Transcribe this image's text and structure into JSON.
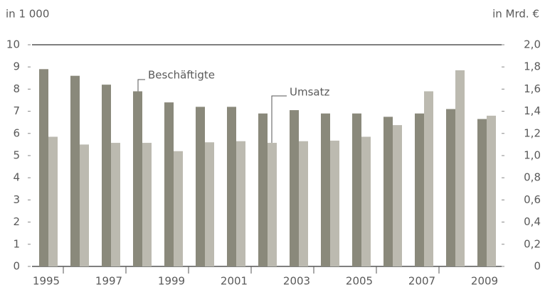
{
  "chart_data": {
    "type": "bar",
    "y_label": "in 1 000",
    "y2_label": "in Mrd. €",
    "categories": [
      "1995",
      null,
      "1997",
      null,
      "1999",
      null,
      "2001",
      null,
      "2003",
      null,
      "2005",
      null,
      "2007",
      null,
      "2009"
    ],
    "series": [
      {
        "name": "Beschäftigte",
        "color": "#8a897b",
        "values": [
          8.9,
          8.6,
          8.2,
          7.9,
          7.4,
          7.2,
          7.2,
          6.9,
          7.05,
          6.9,
          6.9,
          6.75,
          6.9,
          7.1,
          6.65
        ]
      },
      {
        "name": "Umsatz",
        "color": "#bcbab0",
        "axis": "y2",
        "values": [
          1.17,
          1.1,
          1.115,
          1.115,
          1.04,
          1.12,
          1.13,
          1.115,
          1.13,
          1.135,
          1.17,
          1.275,
          1.58,
          1.77,
          1.36
        ]
      }
    ],
    "ylim": [
      0,
      10
    ],
    "yticks": [
      0,
      1,
      2,
      3,
      4,
      5,
      6,
      7,
      8,
      9,
      10
    ],
    "y2lim": [
      0,
      2.0
    ],
    "y2ticks": [
      0,
      {
        "value": 0.2,
        "label": "0,2"
      },
      {
        "value": 0.4,
        "label": "0,4"
      },
      {
        "value": 0.6,
        "label": "0,6"
      },
      {
        "value": 0.8,
        "label": "0,8"
      },
      {
        "value": 1.0,
        "label": "1,0"
      },
      {
        "value": 1.2,
        "label": "1,2"
      },
      {
        "value": 1.4,
        "label": "1,4"
      },
      {
        "value": 1.6,
        "label": "1,6"
      },
      {
        "value": 1.8,
        "label": "1,8"
      },
      {
        "value": 2.0,
        "label": "2,0"
      }
    ]
  }
}
